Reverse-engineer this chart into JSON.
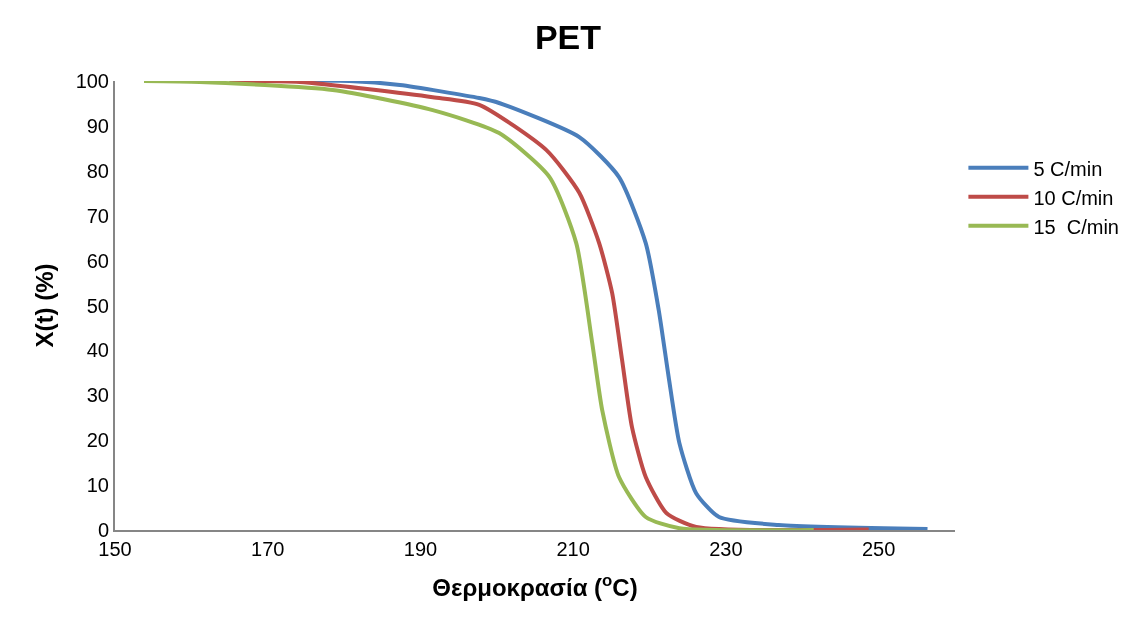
{
  "chart_data": {
    "type": "line",
    "title": "PET",
    "xlabel": "Θερμοκρασία ($^{o}$C)",
    "ylabel": "X(t) (%)",
    "xlim": [
      150,
      260
    ],
    "xticks": [
      150,
      170,
      190,
      210,
      230,
      250
    ],
    "ylim": [
      0,
      100
    ],
    "yticks": [
      0,
      10,
      20,
      30,
      40,
      50,
      60,
      70,
      80,
      90,
      100
    ],
    "grid": false,
    "legend": "right",
    "marker": "none",
    "line_style": "solid",
    "series": [
      {
        "name": "5 C/min",
        "color": "#4a7ebb",
        "x": [
          165,
          180.7,
          187.3,
          197.7,
          200.3,
          210.8,
          216.0,
          219.5,
          221.2,
          222.5,
          223.9,
          226.1,
          229.1,
          236.9,
          256.4
        ],
        "values": [
          100,
          100,
          99.1,
          96.2,
          95.1,
          87.5,
          78.6,
          63.9,
          49.0,
          34.1,
          19.4,
          8.2,
          2.9,
          1.1,
          0.2
        ]
      },
      {
        "name": "10 C/min",
        "color": "#be4b48",
        "x": [
          165,
          174.2,
          191.6,
          197.7,
          206.5,
          210.8,
          213.4,
          215.1,
          216.4,
          217.7,
          219.5,
          222.2,
          226.1,
          248.7
        ],
        "values": [
          100,
          99.8,
          96.4,
          94.7,
          84.6,
          75.1,
          63.9,
          52.8,
          37.9,
          22.9,
          11.8,
          3.8,
          0.7,
          0.1
        ]
      },
      {
        "name": "15  C/min",
        "color": "#98b954",
        "x": [
          153.8,
          161.1,
          178.5,
          191.6,
          200.3,
          206.9,
          210.4,
          212.5,
          213.8,
          216.0,
          219.5,
          223.9,
          241.5
        ],
        "values": [
          100,
          99.8,
          98.0,
          93.5,
          88.4,
          78.6,
          63.9,
          41.6,
          26.7,
          11.8,
          2.9,
          0.4,
          0
        ]
      }
    ]
  }
}
